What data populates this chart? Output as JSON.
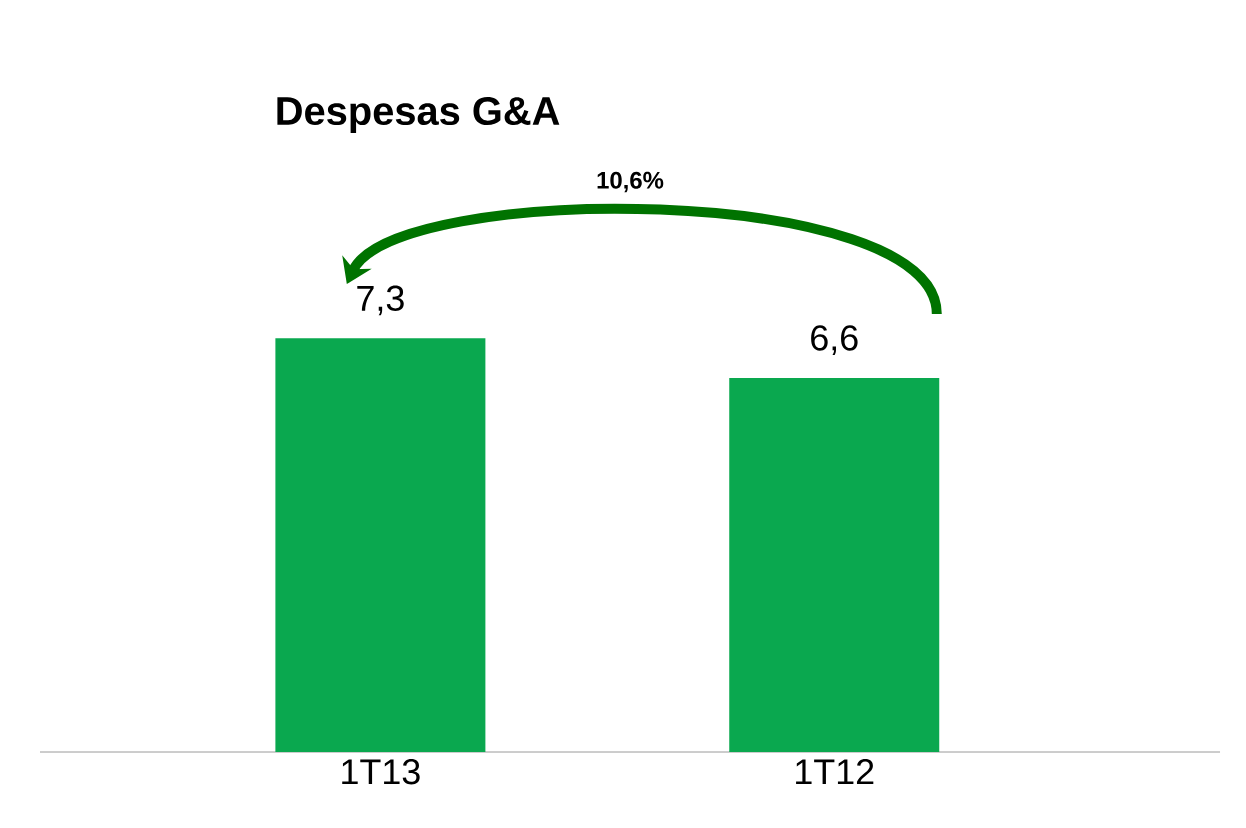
{
  "chart_data": {
    "type": "bar",
    "title": "Despesas G&A",
    "categories": [
      "1T13",
      "1T12"
    ],
    "values": [
      7.3,
      6.6
    ],
    "value_labels": [
      "7,3",
      "6,6"
    ],
    "color": "#0aa84f",
    "annotations": [
      "10,6%"
    ]
  }
}
